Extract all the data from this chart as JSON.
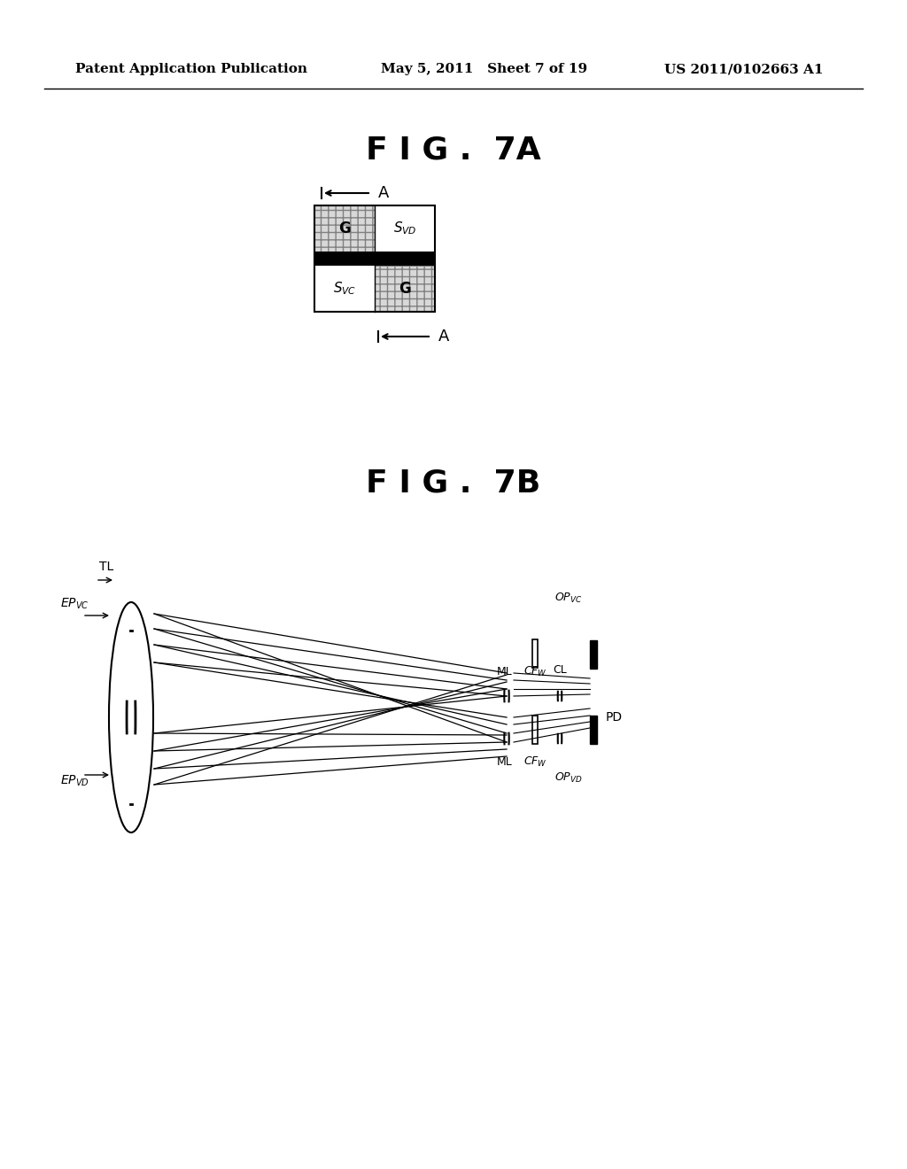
{
  "bg_color": "#ffffff",
  "header_left": "Patent Application Publication",
  "header_mid": "May 5, 2011   Sheet 7 of 19",
  "header_right": "US 2011/0102663 A1",
  "fig7a_title": "F I G .  7A",
  "fig7b_title": "F I G .  7B"
}
